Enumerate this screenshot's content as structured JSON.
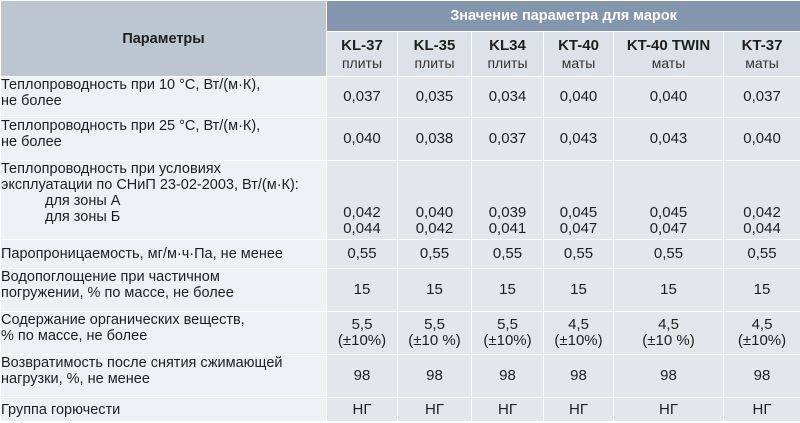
{
  "header": {
    "params_title": "Параметры",
    "group_title": "Значение параметра для марок"
  },
  "brands": [
    {
      "name": "KL-37",
      "kind": "плиты"
    },
    {
      "name": "KL-35",
      "kind": "плиты"
    },
    {
      "name": "KL34",
      "kind": "плиты"
    },
    {
      "name": "KT-40",
      "kind": "маты"
    },
    {
      "name": "KT-40 TWIN",
      "kind": "маты"
    },
    {
      "name": "KT-37",
      "kind": "маты"
    }
  ],
  "rows": [
    {
      "label": [
        "Теплопроводность при 10 °С, Вт/(м·К),",
        "не более"
      ],
      "values": [
        "0,037",
        "0,035",
        "0,034",
        "0,040",
        "0,040",
        "0,037"
      ]
    },
    {
      "label": [
        "Теплопроводность при 25 °С, Вт/(м·К),",
        "не более"
      ],
      "values": [
        "0,040",
        "0,038",
        "0,037",
        "0,043",
        "0,043",
        "0,040"
      ]
    },
    {
      "label": [
        "Теплопроводность при условиях",
        "эксплуатации по СНиП 23-02-2003, Вт/(м·К):"
      ],
      "sub": [
        "для зоны А",
        "для зоны Б"
      ],
      "values_a": [
        "0,042",
        "0,040",
        "0,039",
        "0,045",
        "0,045",
        "0,042"
      ],
      "values_b": [
        "0,044",
        "0,042",
        "0,041",
        "0,047",
        "0,047",
        "0,044"
      ]
    },
    {
      "label": [
        "Паропроницаемость, мг/м·ч·Па, не менее"
      ],
      "values": [
        "0,55",
        "0,55",
        "0,55",
        "0,55",
        "0,55",
        "0,55"
      ]
    },
    {
      "label": [
        "Водопоглощение при частичном",
        "погружении, % по массе, не более"
      ],
      "values": [
        "15",
        "15",
        "15",
        "15",
        "15",
        "15"
      ]
    },
    {
      "label": [
        "Содержание органических веществ,",
        "% по массе, не более"
      ],
      "values": [
        "5,5",
        "5,5",
        "5,5",
        "4,5",
        "4,5",
        "4,5"
      ],
      "values2": [
        "(±10%)",
        "(±10 %)",
        "(±10%)",
        "(±10%)",
        "(±10 %)",
        "(±10%)"
      ]
    },
    {
      "label": [
        "Возвратимость после снятия сжимающей",
        "нагрузки, %, не менее"
      ],
      "values": [
        "98",
        "98",
        "98",
        "98",
        "98",
        "98"
      ]
    },
    {
      "label": [
        "Группа горючести"
      ],
      "values": [
        "НГ",
        "НГ",
        "НГ",
        "НГ",
        "НГ",
        "НГ"
      ]
    }
  ]
}
